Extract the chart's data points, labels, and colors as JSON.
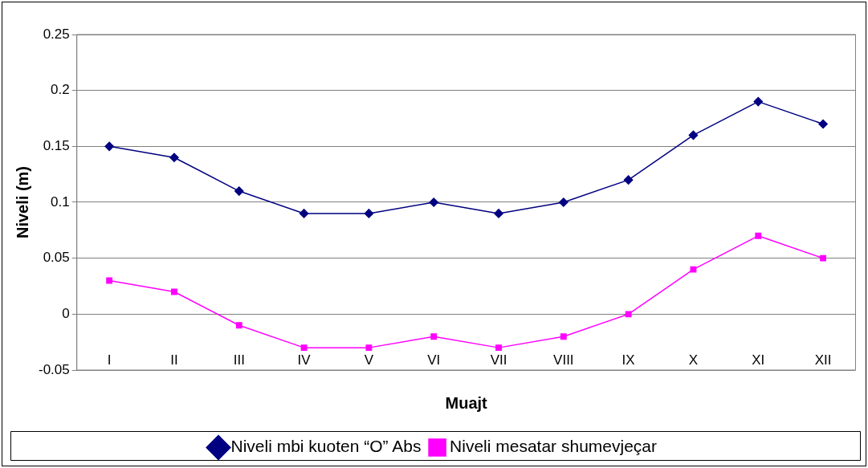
{
  "chart_data": {
    "type": "line",
    "xlabel": "Muajt",
    "ylabel": "Niveli (m)",
    "categories": [
      "I",
      "II",
      "III",
      "IV",
      "V",
      "VI",
      "VII",
      "VIII",
      "IX",
      "X",
      "XI",
      "XII"
    ],
    "series": [
      {
        "name": "Niveli mbi kuoten “O” Abs",
        "color": "#000080",
        "marker": "diamond",
        "values": [
          0.15,
          0.14,
          0.11,
          0.09,
          0.09,
          0.1,
          0.09,
          0.1,
          0.12,
          0.16,
          0.19,
          0.17
        ]
      },
      {
        "name": "Niveli mesatar shumevjeçar",
        "color": "#ff00ff",
        "marker": "square",
        "values": [
          0.03,
          0.02,
          -0.01,
          -0.03,
          -0.03,
          -0.02,
          -0.03,
          -0.02,
          0,
          0.04,
          0.07,
          0.05
        ]
      }
    ],
    "ylim": [
      -0.05,
      0.25
    ],
    "yticks": [
      -0.05,
      0,
      0.05,
      0.1,
      0.15,
      0.2,
      0.25
    ],
    "grid": "y",
    "legend": "bottom",
    "line_style": "solid"
  }
}
